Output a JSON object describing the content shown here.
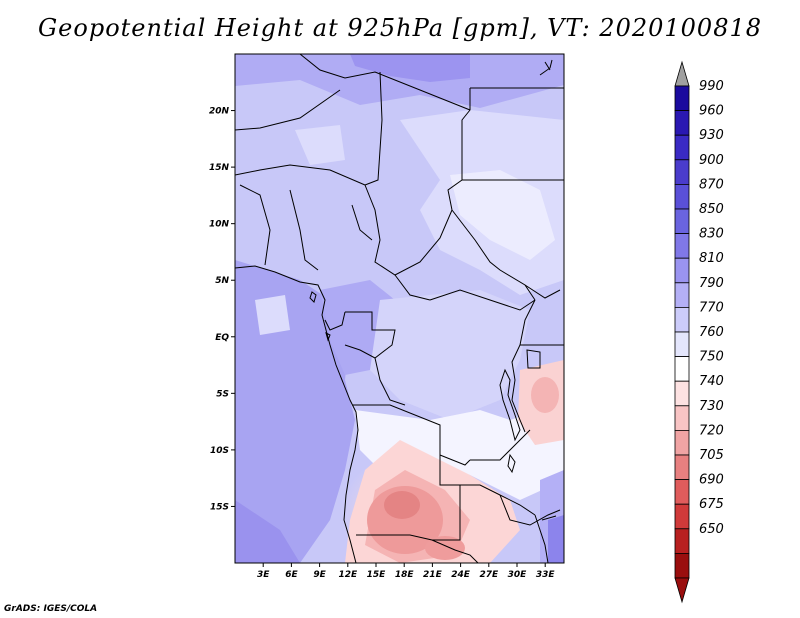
{
  "title": "Geopotential Height at 925hPa [gpm], VT: 2020100818",
  "credit": "GrADS: IGES/COLA",
  "map": {
    "lat_labels": [
      {
        "label": "20N",
        "value": 20
      },
      {
        "label": "15N",
        "value": 15
      },
      {
        "label": "10N",
        "value": 10
      },
      {
        "label": "5N",
        "value": 5
      },
      {
        "label": "EQ",
        "value": 0
      },
      {
        "label": "5S",
        "value": -5
      },
      {
        "label": "10S",
        "value": -10
      },
      {
        "label": "15S",
        "value": -15
      }
    ],
    "lon_labels": [
      {
        "label": "3E",
        "value": 3
      },
      {
        "label": "6E",
        "value": 6
      },
      {
        "label": "9E",
        "value": 9
      },
      {
        "label": "12E",
        "value": 12
      },
      {
        "label": "15E",
        "value": 15
      },
      {
        "label": "18E",
        "value": 18
      },
      {
        "label": "21E",
        "value": 21
      },
      {
        "label": "24E",
        "value": 24
      },
      {
        "label": "27E",
        "value": 27
      },
      {
        "label": "30E",
        "value": 30
      },
      {
        "label": "33E",
        "value": 33
      }
    ],
    "lat_range": [
      -20,
      25
    ],
    "lon_range": [
      0,
      35
    ]
  },
  "colorbar": {
    "levels": [
      "990",
      "960",
      "930",
      "900",
      "870",
      "850",
      "830",
      "810",
      "790",
      "770",
      "760",
      "750",
      "740",
      "730",
      "720",
      "705",
      "690",
      "675",
      "650"
    ],
    "colors_top_to_bottom": [
      "#1a0a9e",
      "#2a18b2",
      "#3a2ac4",
      "#4a3ccc",
      "#5a50d8",
      "#6a64e0",
      "#8078e8",
      "#9a94f0",
      "#b4b0f6",
      "#ccccfa",
      "#e4e6fc",
      "#ffffff",
      "#fde2e2",
      "#f8c4c4",
      "#f0a4a4",
      "#e88080",
      "#e05c5c",
      "#d03a3a",
      "#b82020",
      "#9a0e0e"
    ],
    "top_arrow_color": "#a0a0a0",
    "bottom_arrow_color": "#9a0e0e"
  }
}
